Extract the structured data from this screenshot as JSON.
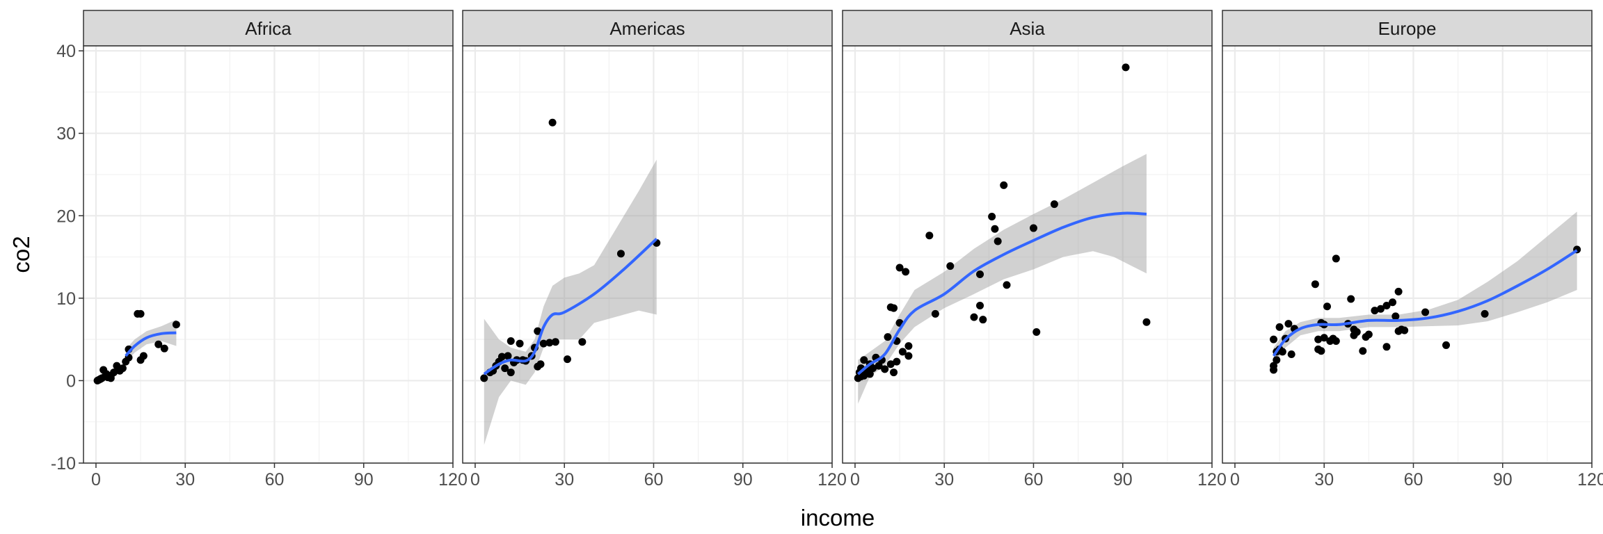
{
  "chart_data": {
    "type": "scatter",
    "xlabel": "income",
    "ylabel": "co2",
    "xlim": [
      -4.2,
      120
    ],
    "ylim": [
      -10,
      40.6
    ],
    "x_ticks": [
      0,
      30,
      60,
      90,
      120
    ],
    "y_ticks": [
      -10,
      0,
      10,
      20,
      30,
      40
    ],
    "grid": true,
    "colors": {
      "points": "#000000",
      "smooth": "#3366FF",
      "ribbon": "#999999",
      "strip": "#D9D9D9"
    },
    "facets": [
      {
        "label": "Africa",
        "points": [
          [
            0.5,
            0
          ],
          [
            1,
            0.1
          ],
          [
            1.5,
            0.2
          ],
          [
            2,
            0.3
          ],
          [
            2.5,
            1.3
          ],
          [
            3,
            0.5
          ],
          [
            3.5,
            0.8
          ],
          [
            4,
            0.4
          ],
          [
            5,
            0.6
          ],
          [
            5,
            0.3
          ],
          [
            6,
            1
          ],
          [
            7,
            1.8
          ],
          [
            8,
            1.2
          ],
          [
            9,
            1.5
          ],
          [
            10,
            2.3
          ],
          [
            11,
            2.8
          ],
          [
            11,
            3.8
          ],
          [
            14,
            8.1
          ],
          [
            15,
            8.1
          ],
          [
            15,
            2.5
          ],
          [
            16,
            3
          ],
          [
            21,
            4.4
          ],
          [
            23,
            3.9
          ],
          [
            27,
            6.8
          ]
        ],
        "smooth": [
          [
            10,
            3
          ],
          [
            13,
            4.2
          ],
          [
            17,
            5.2
          ],
          [
            22,
            5.7
          ],
          [
            27,
            5.8
          ]
        ],
        "ribbon_low": [
          [
            10,
            2.2
          ],
          [
            13,
            3.4
          ],
          [
            17,
            4.4
          ],
          [
            22,
            4.8
          ],
          [
            27,
            4.2
          ]
        ],
        "ribbon_high": [
          [
            10,
            3.8
          ],
          [
            13,
            5
          ],
          [
            17,
            6
          ],
          [
            22,
            6.6
          ],
          [
            27,
            7.4
          ]
        ]
      },
      {
        "label": "Americas",
        "points": [
          [
            3,
            0.3
          ],
          [
            5,
            1
          ],
          [
            6,
            1.2
          ],
          [
            7,
            1.8
          ],
          [
            8,
            2.3
          ],
          [
            9,
            2.9
          ],
          [
            10,
            1.5
          ],
          [
            11,
            3
          ],
          [
            12,
            4.8
          ],
          [
            12,
            1
          ],
          [
            13,
            2.2
          ],
          [
            14,
            2.5
          ],
          [
            15,
            4.5
          ],
          [
            16,
            2.5
          ],
          [
            17,
            2.4
          ],
          [
            19,
            3
          ],
          [
            20,
            4
          ],
          [
            21,
            1.7
          ],
          [
            21,
            6
          ],
          [
            22,
            2
          ],
          [
            23,
            4.5
          ],
          [
            25,
            4.6
          ],
          [
            26,
            31.3
          ],
          [
            27,
            4.7
          ],
          [
            31,
            2.6
          ],
          [
            36,
            4.7
          ],
          [
            49,
            15.4
          ],
          [
            61,
            16.7
          ]
        ],
        "smooth": [
          [
            3,
            0.8
          ],
          [
            8,
            2
          ],
          [
            12,
            2.5
          ],
          [
            17,
            2.4
          ],
          [
            20,
            3.5
          ],
          [
            23,
            6.5
          ],
          [
            26,
            8
          ],
          [
            30,
            8.3
          ],
          [
            40,
            10.5
          ],
          [
            50,
            13.5
          ],
          [
            61,
            17.2
          ]
        ],
        "ribbon_low": [
          [
            3,
            -7.8
          ],
          [
            8,
            -2
          ],
          [
            12,
            0
          ],
          [
            17,
            -0.5
          ],
          [
            20,
            1
          ],
          [
            23,
            4
          ],
          [
            26,
            5
          ],
          [
            30,
            5
          ],
          [
            35,
            5
          ],
          [
            40,
            7
          ],
          [
            50,
            8
          ],
          [
            55,
            8.5
          ],
          [
            61,
            8
          ]
        ],
        "ribbon_high": [
          [
            3,
            7.5
          ],
          [
            8,
            5
          ],
          [
            12,
            4
          ],
          [
            17,
            3.5
          ],
          [
            20,
            5
          ],
          [
            23,
            9
          ],
          [
            26,
            11.5
          ],
          [
            30,
            12.5
          ],
          [
            35,
            13
          ],
          [
            40,
            14
          ],
          [
            50,
            20
          ],
          [
            55,
            23
          ],
          [
            61,
            26.8
          ]
        ]
      },
      {
        "label": "Asia",
        "points": [
          [
            1,
            0.3
          ],
          [
            1.5,
            1
          ],
          [
            2,
            0.5
          ],
          [
            2,
            1.5
          ],
          [
            3,
            2.5
          ],
          [
            3,
            0.6
          ],
          [
            4,
            1.2
          ],
          [
            5,
            2
          ],
          [
            5,
            0.8
          ],
          [
            6,
            1.5
          ],
          [
            7,
            2.8
          ],
          [
            8,
            1.8
          ],
          [
            9,
            2.5
          ],
          [
            10,
            1.4
          ],
          [
            11,
            5.3
          ],
          [
            12,
            2
          ],
          [
            12,
            8.9
          ],
          [
            13,
            8.8
          ],
          [
            13,
            1
          ],
          [
            14,
            4.8
          ],
          [
            14,
            2.3
          ],
          [
            15,
            13.7
          ],
          [
            15,
            7
          ],
          [
            16,
            3.5
          ],
          [
            17,
            13.2
          ],
          [
            18,
            4.2
          ],
          [
            18,
            3
          ],
          [
            25,
            17.6
          ],
          [
            27,
            8.1
          ],
          [
            32,
            13.9
          ],
          [
            40,
            7.7
          ],
          [
            42,
            12.9
          ],
          [
            42,
            9.1
          ],
          [
            43,
            7.4
          ],
          [
            46,
            19.9
          ],
          [
            47,
            18.4
          ],
          [
            48,
            16.9
          ],
          [
            50,
            23.7
          ],
          [
            51,
            11.6
          ],
          [
            60,
            18.5
          ],
          [
            61,
            5.9
          ],
          [
            67,
            21.4
          ],
          [
            91,
            38
          ],
          [
            98,
            7.1
          ]
        ],
        "smooth": [
          [
            1,
            0.8
          ],
          [
            5,
            2
          ],
          [
            10,
            3.2
          ],
          [
            15,
            6.2
          ],
          [
            20,
            8.5
          ],
          [
            30,
            10.5
          ],
          [
            40,
            13.3
          ],
          [
            50,
            15.3
          ],
          [
            60,
            17
          ],
          [
            70,
            18.6
          ],
          [
            80,
            19.8
          ],
          [
            90,
            20.3
          ],
          [
            98,
            20.2
          ]
        ],
        "ribbon_low": [
          [
            1,
            -2.8
          ],
          [
            5,
            0.5
          ],
          [
            10,
            1.8
          ],
          [
            15,
            4.5
          ],
          [
            20,
            6.5
          ],
          [
            30,
            8.8
          ],
          [
            40,
            10.5
          ],
          [
            50,
            12.3
          ],
          [
            60,
            13.5
          ],
          [
            70,
            15
          ],
          [
            80,
            15.7
          ],
          [
            87,
            15
          ],
          [
            98,
            13
          ]
        ],
        "ribbon_high": [
          [
            1,
            2.5
          ],
          [
            5,
            3.5
          ],
          [
            10,
            4.8
          ],
          [
            15,
            8
          ],
          [
            20,
            11
          ],
          [
            30,
            13.2
          ],
          [
            40,
            16
          ],
          [
            50,
            18.3
          ],
          [
            60,
            20.2
          ],
          [
            70,
            22
          ],
          [
            80,
            24
          ],
          [
            90,
            26
          ],
          [
            98,
            27.5
          ]
        ]
      },
      {
        "label": "Europe",
        "points": [
          [
            13,
            1.3
          ],
          [
            13,
            1.8
          ],
          [
            13,
            5
          ],
          [
            14,
            2.5
          ],
          [
            14,
            3.5
          ],
          [
            15,
            6.5
          ],
          [
            15,
            3.8
          ],
          [
            16,
            3.5
          ],
          [
            17,
            5.1
          ],
          [
            18,
            6.9
          ],
          [
            19,
            3.2
          ],
          [
            20,
            6.3
          ],
          [
            27,
            11.7
          ],
          [
            28,
            5
          ],
          [
            28,
            3.8
          ],
          [
            29,
            7
          ],
          [
            29,
            3.6
          ],
          [
            30,
            5.2
          ],
          [
            30,
            6.8
          ],
          [
            31,
            9
          ],
          [
            32,
            4.8
          ],
          [
            33,
            5.1
          ],
          [
            34,
            14.8
          ],
          [
            34,
            4.8
          ],
          [
            38,
            6.9
          ],
          [
            39,
            9.9
          ],
          [
            40,
            5.5
          ],
          [
            40,
            6.2
          ],
          [
            41,
            5.9
          ],
          [
            43,
            3.6
          ],
          [
            44,
            5.3
          ],
          [
            45,
            5.6
          ],
          [
            47,
            8.5
          ],
          [
            49,
            8.7
          ],
          [
            51,
            9.1
          ],
          [
            51,
            4.1
          ],
          [
            53,
            9.5
          ],
          [
            54,
            7.8
          ],
          [
            55,
            10.8
          ],
          [
            55,
            6
          ],
          [
            56,
            6.2
          ],
          [
            57,
            6.1
          ],
          [
            64,
            8.3
          ],
          [
            71,
            4.3
          ],
          [
            84,
            8.1
          ],
          [
            115,
            15.9
          ]
        ],
        "smooth": [
          [
            13,
            3
          ],
          [
            17,
            5
          ],
          [
            22,
            6.3
          ],
          [
            28,
            6.8
          ],
          [
            35,
            6.8
          ],
          [
            45,
            7.3
          ],
          [
            55,
            7.3
          ],
          [
            65,
            7.6
          ],
          [
            75,
            8.4
          ],
          [
            85,
            9.7
          ],
          [
            95,
            11.5
          ],
          [
            105,
            13.5
          ],
          [
            115,
            15.8
          ]
        ],
        "ribbon_low": [
          [
            13,
            1.9
          ],
          [
            17,
            4
          ],
          [
            22,
            5.5
          ],
          [
            28,
            6
          ],
          [
            35,
            6
          ],
          [
            45,
            6.5
          ],
          [
            55,
            6.5
          ],
          [
            65,
            6.6
          ],
          [
            75,
            6.7
          ],
          [
            85,
            7.2
          ],
          [
            95,
            8.3
          ],
          [
            105,
            9.5
          ],
          [
            115,
            11
          ]
        ],
        "ribbon_high": [
          [
            13,
            4
          ],
          [
            17,
            6
          ],
          [
            22,
            7.1
          ],
          [
            28,
            7.6
          ],
          [
            35,
            7.6
          ],
          [
            45,
            8
          ],
          [
            55,
            8
          ],
          [
            65,
            8.6
          ],
          [
            75,
            9.8
          ],
          [
            85,
            12
          ],
          [
            95,
            14.5
          ],
          [
            105,
            17.5
          ],
          [
            115,
            20.5
          ]
        ]
      }
    ]
  }
}
